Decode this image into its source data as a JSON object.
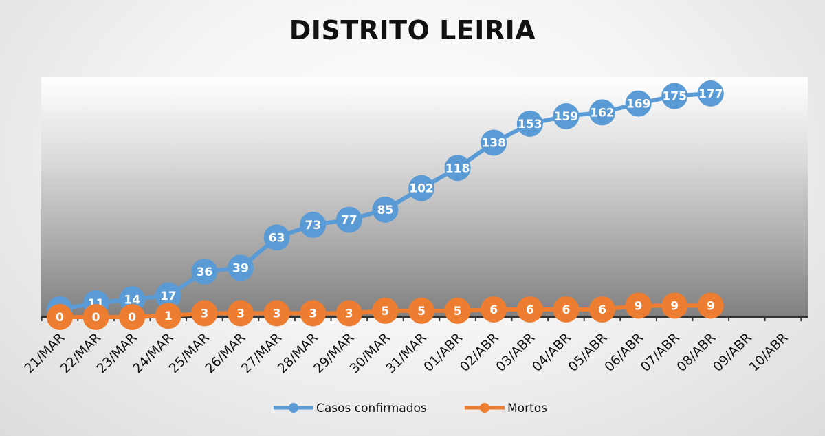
{
  "chart_data": {
    "type": "line",
    "title": "DISTRITO LEIRIA",
    "categories": [
      "21/MAR",
      "22/MAR",
      "23/MAR",
      "24/MAR",
      "25/MAR",
      "26/MAR",
      "27/MAR",
      "28/MAR",
      "29/MAR",
      "30/MAR",
      "31/MAR",
      "01/ABR",
      "02/ABR",
      "03/ABR",
      "04/ABR",
      "05/ABR",
      "06/ABR",
      "07/ABR",
      "08/ABR",
      "09/ABR",
      "10/ABR"
    ],
    "series": [
      {
        "name": "Casos confirmados",
        "color": "#5b9bd5",
        "values": [
          6,
          11,
          14,
          17,
          36,
          39,
          63,
          73,
          77,
          85,
          102,
          118,
          138,
          153,
          159,
          162,
          169,
          175,
          177,
          null,
          null
        ]
      },
      {
        "name": "Mortos",
        "color": "#ed7d31",
        "values": [
          0,
          0,
          0,
          1,
          3,
          3,
          3,
          3,
          3,
          5,
          5,
          5,
          6,
          6,
          6,
          6,
          9,
          9,
          9,
          null,
          null
        ]
      }
    ],
    "ylim": [
      0,
      190
    ],
    "grid": false,
    "legend": "bottom",
    "data_labels": true
  }
}
